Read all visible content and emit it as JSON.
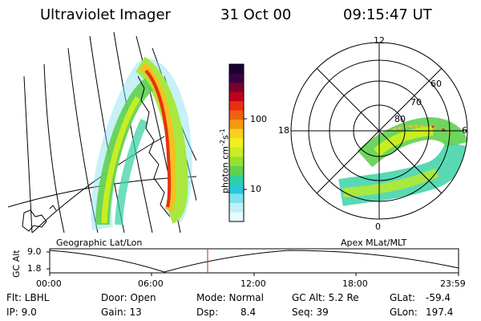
{
  "header": {
    "title": "Ultraviolet Imager",
    "date": "31 Oct 00",
    "time": "09:15:47 UT"
  },
  "colorbar": {
    "label": "photon cm",
    "label_exp1": "-2",
    "label_mid": "s",
    "label_exp2": "-1",
    "ticks": [
      "100",
      "10"
    ],
    "colors": [
      "#1a0033",
      "#3a0040",
      "#7a0030",
      "#c0001a",
      "#e83010",
      "#f06010",
      "#f59a10",
      "#f8d020",
      "#f2f020",
      "#c8ee20",
      "#98e030",
      "#5fd050",
      "#30d0a0",
      "#28c8d8",
      "#7fe0ee",
      "#bff0f8",
      "#e8fafc"
    ]
  },
  "left_panel": {
    "caption": "Geographic Lat/Lon"
  },
  "right_panel": {
    "caption": "Apex MLat/MLT",
    "mlt_labels": {
      "top": "12",
      "left": "18",
      "right": "6",
      "bottom": "0"
    },
    "lat_labels": [
      "60",
      "70",
      "80"
    ]
  },
  "altitude_plot": {
    "ylabel": "GC Alt",
    "yticks": [
      "9.0",
      "1.8"
    ],
    "xticks": [
      "00:00",
      "06:00",
      "12:00",
      "18:00",
      "23:59"
    ],
    "marker_color": "#c02020"
  },
  "status": {
    "flt": "Flt: LBHL",
    "ip": "IP: 9.0",
    "door": "Door: Open",
    "gain": "Gain: 13",
    "mode": "Mode: Normal",
    "dsp_label": "Dsp:",
    "dsp_value": "8.4",
    "gcalt": "GC Alt: 5.2 Re",
    "seq": "Seq: 39",
    "glat_label": "GLat:",
    "glat_value": "-59.4",
    "glon_label": "GLon:",
    "glon_value": "197.4"
  }
}
